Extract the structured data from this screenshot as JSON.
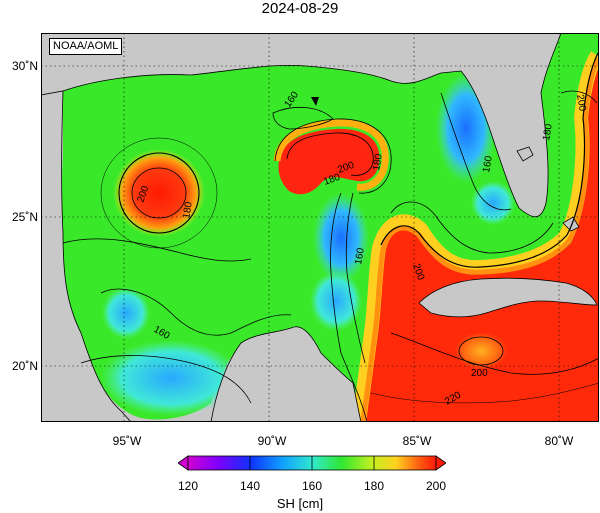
{
  "title": "2024-08-29",
  "credit": "NOAA/AOML",
  "lat_labels": [
    "30˚N",
    "25˚N",
    "20˚N"
  ],
  "lon_labels": [
    "95˚W",
    "90˚W",
    "85˚W",
    "80˚W"
  ],
  "contour_labels": [
    "160",
    "180",
    "200",
    "160",
    "180",
    "200",
    "180",
    "160",
    "200",
    "180",
    "160",
    "200",
    "200",
    "220"
  ],
  "colorbar": {
    "ticks": [
      "120",
      "140",
      "160",
      "180",
      "200"
    ],
    "title": "SH [cm]"
  },
  "colors": {
    "land": "#c8c8c8",
    "ocean_mid": "#34e61a",
    "ocean_high": "#ff2a0a",
    "ocean_low": "#1aa0ff"
  }
}
